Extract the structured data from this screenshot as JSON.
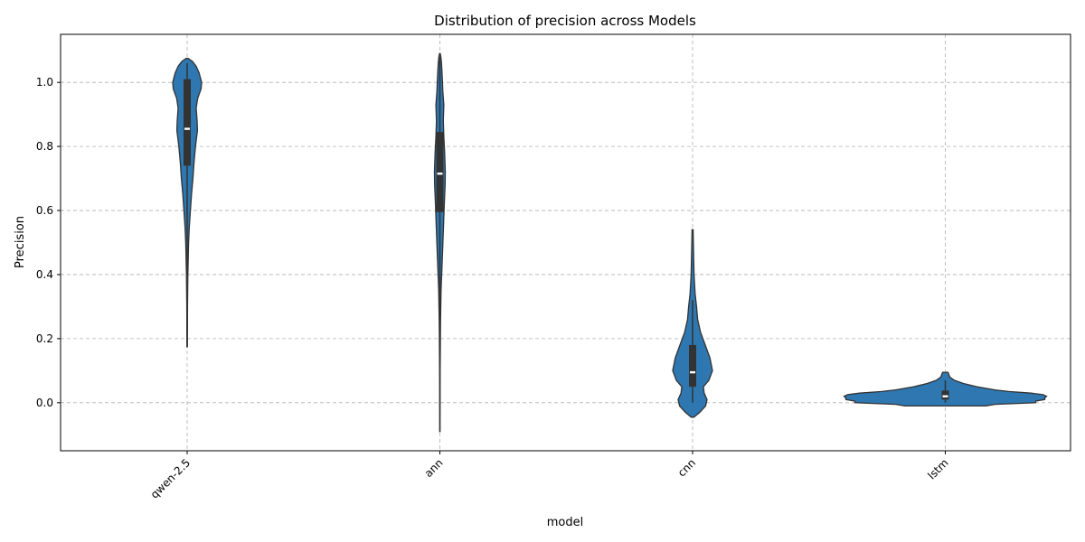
{
  "chart_data": {
    "type": "violin",
    "title": "Distribution of precision across Models",
    "xlabel": "model",
    "ylabel": "Precision",
    "ylim": [
      -0.15,
      1.15
    ],
    "yticks": [
      0.0,
      0.2,
      0.4,
      0.6,
      0.8,
      1.0
    ],
    "ytick_labels": [
      "0.0",
      "0.2",
      "0.4",
      "0.6",
      "0.8",
      "1.0"
    ],
    "grid": true,
    "categories": [
      "qwen-2.5",
      "ann",
      "cnn",
      "lstm"
    ],
    "colors": {
      "violin": "#2e77b0",
      "box": "#333333",
      "median": "#ffffff"
    },
    "violins": [
      {
        "name": "qwen-2.5",
        "density": [
          [
            0.175,
            0.0015
          ],
          [
            0.3,
            0.002
          ],
          [
            0.4,
            0.004
          ],
          [
            0.5,
            0.008
          ],
          [
            0.55,
            0.012
          ],
          [
            0.6,
            0.018
          ],
          [
            0.65,
            0.024
          ],
          [
            0.7,
            0.032
          ],
          [
            0.75,
            0.038
          ],
          [
            0.8,
            0.046
          ],
          [
            0.85,
            0.057
          ],
          [
            0.88,
            0.055
          ],
          [
            0.92,
            0.05
          ],
          [
            0.95,
            0.058
          ],
          [
            0.98,
            0.077
          ],
          [
            1.0,
            0.08
          ],
          [
            1.03,
            0.066
          ],
          [
            1.05,
            0.05
          ],
          [
            1.065,
            0.03
          ],
          [
            1.075,
            0.006
          ]
        ],
        "q1": 0.74,
        "median": 0.855,
        "q3": 1.01,
        "whisker_low": 0.4,
        "whisker_high": 1.06
      },
      {
        "name": "ann",
        "density": [
          [
            -0.09,
            0.001
          ],
          [
            0.1,
            0.0015
          ],
          [
            0.25,
            0.003
          ],
          [
            0.35,
            0.006
          ],
          [
            0.45,
            0.012
          ],
          [
            0.55,
            0.018
          ],
          [
            0.62,
            0.022
          ],
          [
            0.68,
            0.026
          ],
          [
            0.72,
            0.027
          ],
          [
            0.78,
            0.024
          ],
          [
            0.83,
            0.02
          ],
          [
            0.88,
            0.017
          ],
          [
            0.93,
            0.02
          ],
          [
            0.97,
            0.015
          ],
          [
            1.0,
            0.013
          ],
          [
            1.03,
            0.011
          ],
          [
            1.06,
            0.008
          ],
          [
            1.08,
            0.005
          ],
          [
            1.09,
            0.002
          ]
        ],
        "q1": 0.595,
        "median": 0.715,
        "q3": 0.845,
        "whisker_low": 0.24,
        "whisker_high": 1.08
      },
      {
        "name": "cnn",
        "density": [
          [
            -0.045,
            0.004
          ],
          [
            -0.03,
            0.02
          ],
          [
            -0.01,
            0.036
          ],
          [
            0.01,
            0.04
          ],
          [
            0.03,
            0.032
          ],
          [
            0.05,
            0.03
          ],
          [
            0.07,
            0.045
          ],
          [
            0.1,
            0.055
          ],
          [
            0.14,
            0.048
          ],
          [
            0.18,
            0.035
          ],
          [
            0.22,
            0.022
          ],
          [
            0.26,
            0.014
          ],
          [
            0.3,
            0.011
          ],
          [
            0.34,
            0.007
          ],
          [
            0.4,
            0.004
          ],
          [
            0.48,
            0.0025
          ],
          [
            0.54,
            0.0015
          ]
        ],
        "q1": 0.05,
        "median": 0.095,
        "q3": 0.18,
        "whisker_low": 0.0,
        "whisker_high": 0.32
      },
      {
        "name": "lstm",
        "density": [
          [
            -0.01,
            0.045
          ],
          [
            -0.005,
            0.055
          ],
          [
            0.0,
            0.1
          ],
          [
            0.005,
            0.1
          ],
          [
            0.01,
            0.11
          ],
          [
            0.015,
            0.11
          ],
          [
            0.02,
            0.112
          ],
          [
            0.025,
            0.108
          ],
          [
            0.03,
            0.095
          ],
          [
            0.035,
            0.07
          ],
          [
            0.04,
            0.055
          ],
          [
            0.05,
            0.035
          ],
          [
            0.06,
            0.02
          ],
          [
            0.07,
            0.01
          ],
          [
            0.08,
            0.005
          ],
          [
            0.095,
            0.003
          ]
        ],
        "q1": 0.01,
        "median": 0.02,
        "q3": 0.038,
        "whisker_low": 0.0,
        "whisker_high": 0.07
      }
    ]
  }
}
